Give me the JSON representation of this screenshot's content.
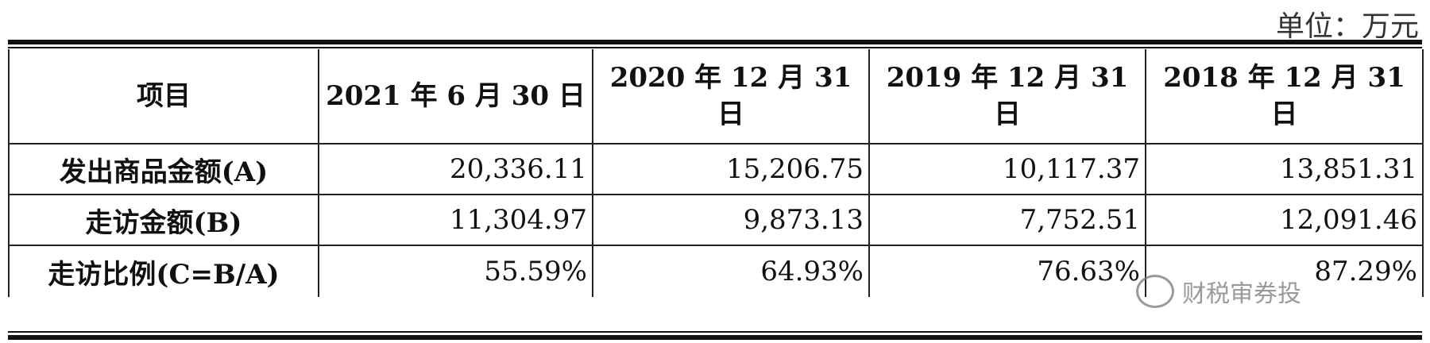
{
  "unit_label": "单位：万元",
  "header": {
    "col0": "项目",
    "col1": "2021 年 6 月 30 日",
    "col2_line1": "2020 年 12 月 31",
    "col2_line2": "日",
    "col3_line1": "2019 年 12 月 31",
    "col3_line2": "日",
    "col4_line1": "2018 年 12 月 31",
    "col4_line2": "日"
  },
  "rows": [
    {
      "label": "发出商品金额(A)",
      "v2021": "20,336.11",
      "v2020": "15,206.75",
      "v2019": "10,117.37",
      "v2018": "13,851.31"
    },
    {
      "label": "走访金额(B)",
      "v2021": "11,304.97",
      "v2020": "9,873.13",
      "v2019": "7,752.51",
      "v2018": "12,091.46"
    },
    {
      "label": "走访比例(C=B/A)",
      "v2021": "55.59%",
      "v2020": "64.93%",
      "v2019": "76.63%",
      "v2018": "87.29%"
    }
  ],
  "watermark": "财税审券投"
}
